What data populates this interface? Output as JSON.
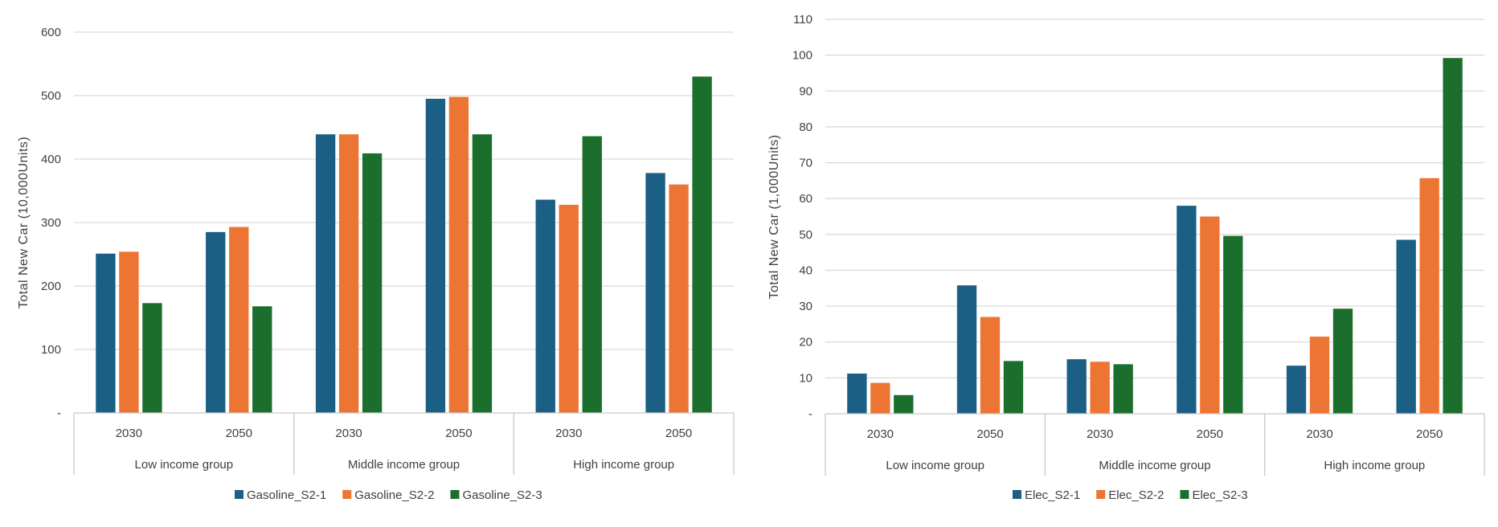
{
  "chart_data": [
    {
      "type": "bar",
      "ylabel": "Total New Car (10,000Units)",
      "ylim": [
        0,
        600
      ],
      "y_ticks": [
        {
          "value": 0,
          "label": "-"
        },
        {
          "value": 100,
          "label": "100"
        },
        {
          "value": 200,
          "label": "200"
        },
        {
          "value": 300,
          "label": "300"
        },
        {
          "value": 400,
          "label": "400"
        },
        {
          "value": 500,
          "label": "500"
        },
        {
          "value": 600,
          "label": "600"
        }
      ],
      "groups": [
        "Low income group",
        "Middle income group",
        "High income group"
      ],
      "categories": [
        "2030",
        "2050",
        "2030",
        "2050",
        "2030",
        "2050"
      ],
      "grid": true,
      "legend_position": "bottom",
      "series": [
        {
          "name": "Gasoline_S2-1",
          "color": "#1b5f84",
          "values": [
            251,
            285,
            439,
            495,
            336,
            378
          ]
        },
        {
          "name": "Gasoline_S2-2",
          "color": "#ed7533",
          "values": [
            254,
            293,
            439,
            498,
            328,
            360
          ]
        },
        {
          "name": "Gasoline_S2-3",
          "color": "#1b6e2b",
          "values": [
            173,
            168,
            409,
            439,
            436,
            530
          ]
        }
      ]
    },
    {
      "type": "bar",
      "ylabel": "Total New Car (1,000Units)",
      "ylim": [
        0,
        110
      ],
      "y_ticks": [
        {
          "value": 0,
          "label": "-"
        },
        {
          "value": 10,
          "label": "10"
        },
        {
          "value": 20,
          "label": "20"
        },
        {
          "value": 30,
          "label": "30"
        },
        {
          "value": 40,
          "label": "40"
        },
        {
          "value": 50,
          "label": "50"
        },
        {
          "value": 60,
          "label": "60"
        },
        {
          "value": 70,
          "label": "70"
        },
        {
          "value": 80,
          "label": "80"
        },
        {
          "value": 90,
          "label": "90"
        },
        {
          "value": 100,
          "label": "100"
        },
        {
          "value": 110,
          "label": "110"
        }
      ],
      "groups": [
        "Low income group",
        "Middle income group",
        "High income group"
      ],
      "categories": [
        "2030",
        "2050",
        "2030",
        "2050",
        "2030",
        "2050"
      ],
      "grid": true,
      "legend_position": "bottom",
      "series": [
        {
          "name": "Elec_S2-1",
          "color": "#1b5f84",
          "values": [
            11.2,
            35.8,
            15.2,
            58.0,
            13.4,
            48.5
          ]
        },
        {
          "name": "Elec_S2-2",
          "color": "#ed7533",
          "values": [
            8.6,
            27.0,
            14.5,
            55.0,
            21.5,
            65.7
          ]
        },
        {
          "name": "Elec_S2-3",
          "color": "#1b6e2b",
          "values": [
            5.2,
            14.7,
            13.8,
            49.6,
            29.3,
            99.2
          ]
        }
      ]
    }
  ]
}
